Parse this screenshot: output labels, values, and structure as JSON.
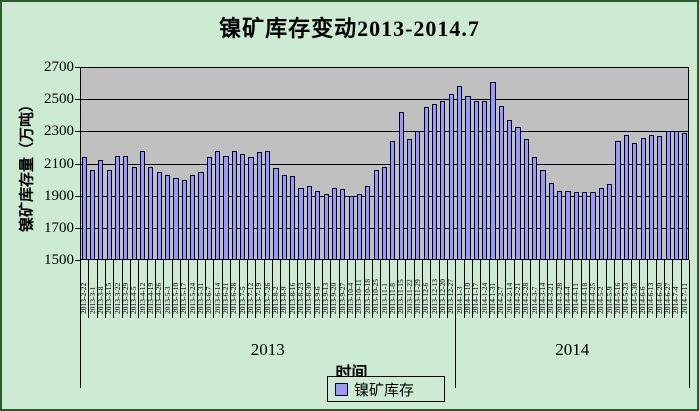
{
  "title": "镍矿库存变动2013-2014.7",
  "y_axis": {
    "title": "镍矿库存量（万吨）",
    "min": 1500,
    "max": 2700,
    "tick_step": 200,
    "ticks": [
      1500,
      1700,
      1900,
      2100,
      2300,
      2500,
      2700
    ]
  },
  "x_axis": {
    "title": "时间",
    "year_groups": [
      {
        "label": "2013",
        "count": 45
      },
      {
        "label": "2014",
        "count": 28
      }
    ]
  },
  "legend": {
    "label": "镍矿库存",
    "marker": "square-icon"
  },
  "colors": {
    "background": "#cdebd3",
    "plot_bg": "#c0c0c0",
    "bar_fill": "#9a9af0",
    "bar_border": "#000030",
    "grid": "#000000",
    "frame_border": "#2d5a2d"
  },
  "chart_data": {
    "type": "bar",
    "title": "镍矿库存变动2013-2014.7",
    "xlabel": "时间",
    "ylabel": "镍矿库存量（万吨）",
    "ylim": [
      1500,
      2700
    ],
    "grid": "horizontal",
    "legend_position": "bottom",
    "series_name": "镍矿库存",
    "categories": [
      "2013-2-22",
      "2013-3-1",
      "2013-3-8",
      "2013-3-15",
      "2013-3-22",
      "2013-3-29",
      "2013-4-5",
      "2013-4-12",
      "2013-4-19",
      "2013-4-26",
      "2013-5-3",
      "2013-5-10",
      "2013-5-17",
      "2013-5-24",
      "2013-5-31",
      "2013-6-7",
      "2013-6-14",
      "2013-6-21",
      "2013-6-28",
      "2013-7-5",
      "2013-7-12",
      "2013-7-19",
      "2013-7-26",
      "2013-8-2",
      "2013-8-9",
      "2013-8-16",
      "2013-8-23",
      "2013-8-30",
      "2013-9-6",
      "2013-9-13",
      "2013-9-20",
      "2013-9-27",
      "2013-10-4",
      "2013-10-11",
      "2013-10-18",
      "2013-10-25",
      "2013-11-1",
      "2013-11-8",
      "2013-11-15",
      "2013-11-22",
      "2013-11-29",
      "2013-12-6",
      "2013-12-13",
      "2013-12-20",
      "2013-12-27",
      "2014-1-3",
      "2014-1-10",
      "2014-1-17",
      "2014-1-24",
      "2014-1-31",
      "2014-2-7",
      "2014-2-14",
      "2014-2-21",
      "2014-2-28",
      "2014-3-7",
      "2014-3-14",
      "2014-3-21",
      "2014-3-28",
      "2014-4-4",
      "2014-4-11",
      "2014-4-18",
      "2014-4-25",
      "2014-5-2",
      "2014-5-9",
      "2014-5-16",
      "2014-5-23",
      "2014-5-30",
      "2014-6-6",
      "2014-6-13",
      "2014-6-20",
      "2014-6-27",
      "2014-7-4",
      "2014-7-11"
    ],
    "values": [
      2140,
      2060,
      2120,
      2060,
      2150,
      2150,
      2080,
      2180,
      2080,
      2050,
      2030,
      2010,
      2000,
      2030,
      2050,
      2140,
      2180,
      2150,
      2180,
      2160,
      2140,
      2170,
      2180,
      2070,
      2030,
      2020,
      1950,
      1960,
      1930,
      1910,
      1950,
      1940,
      1900,
      1910,
      1960,
      2060,
      2080,
      2240,
      2420,
      2250,
      2300,
      2450,
      2470,
      2490,
      2530,
      2580,
      2520,
      2490,
      2490,
      2610,
      2460,
      2370,
      2330,
      2250,
      2140,
      2060,
      1980,
      1930,
      1930,
      1920,
      1920,
      1920,
      1950,
      1970,
      2240,
      2280,
      2230,
      2260,
      2280,
      2270,
      2300,
      2300,
      2290
    ]
  }
}
